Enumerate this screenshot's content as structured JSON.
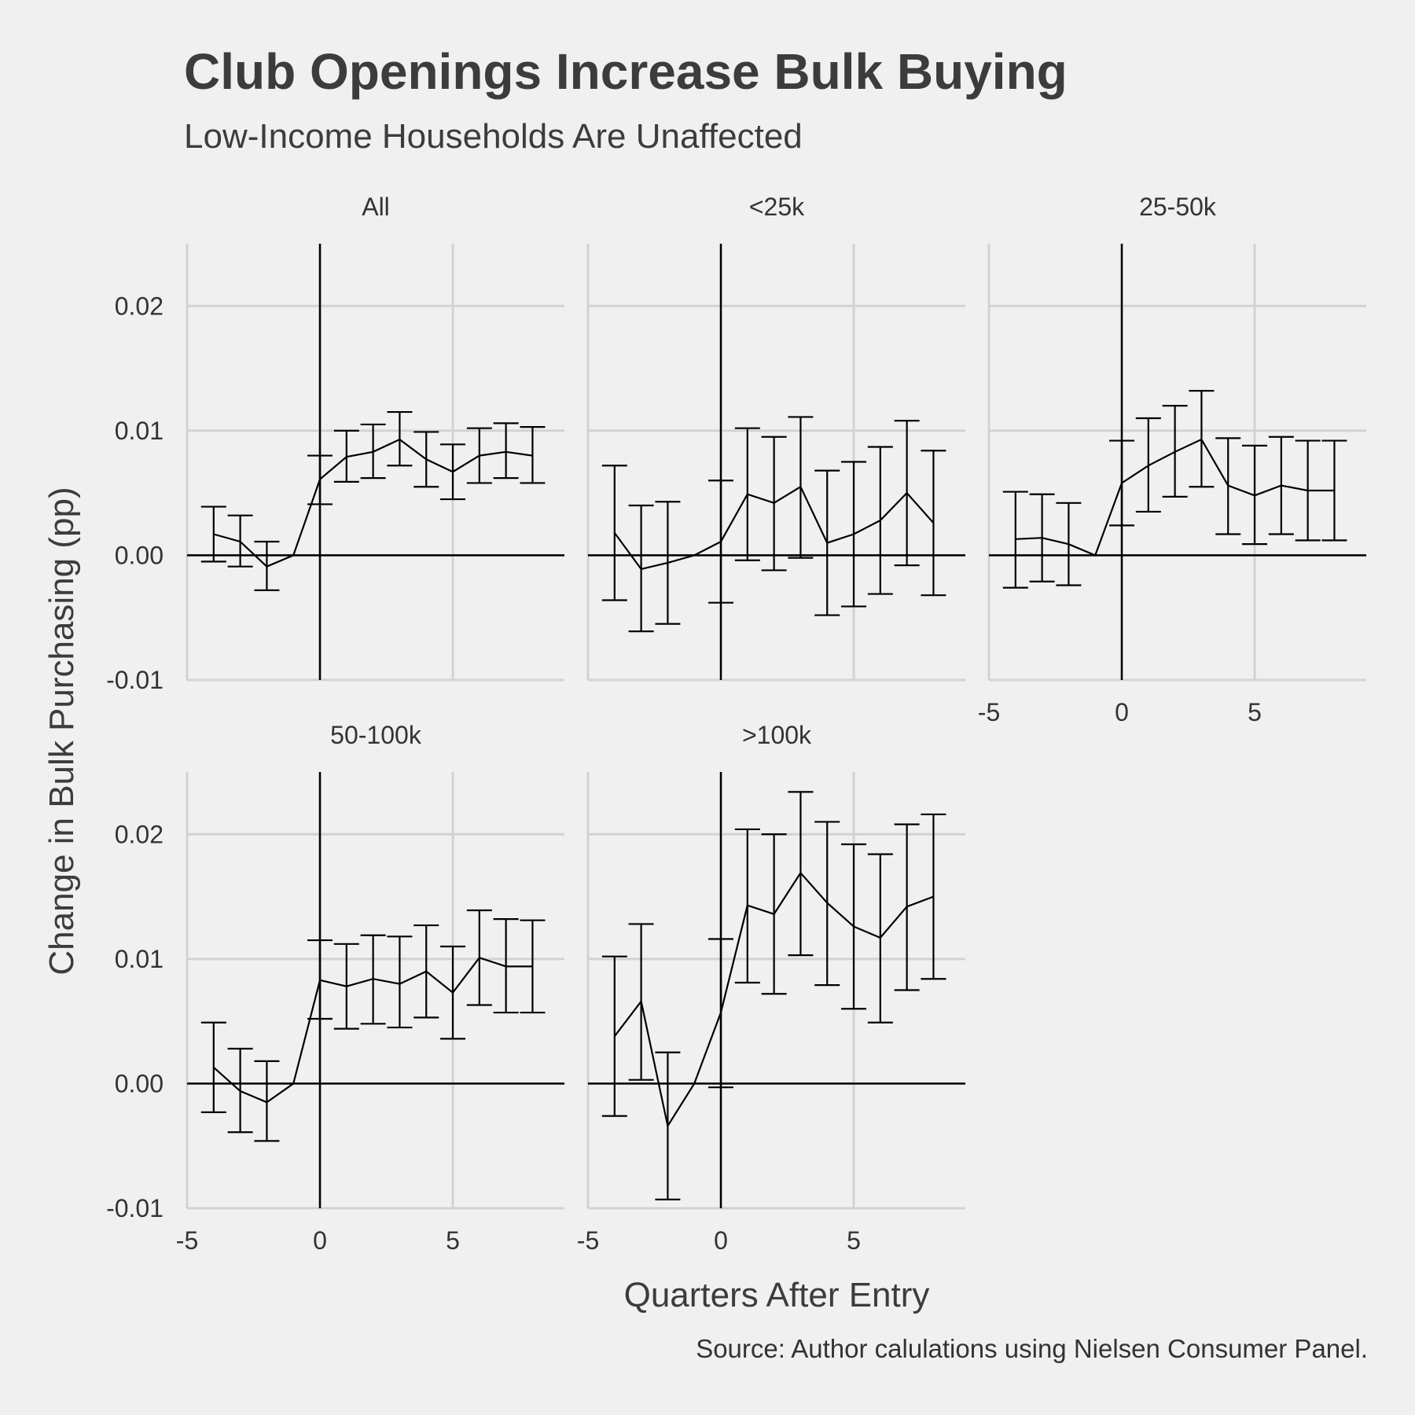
{
  "chart_data": {
    "type": "line",
    "title": "Club Openings Increase Bulk Buying",
    "subtitle": "Low-Income Households Are Unaffected",
    "xlabel": "Quarters After Entry",
    "ylabel": "Change in Bulk Purchasing (pp)",
    "caption": "Source: Author calulations using Nielsen Consumer Panel.",
    "xlim": [
      -5,
      9.2
    ],
    "ylim": [
      -0.01,
      0.025
    ],
    "x_ticks": [
      -5,
      0,
      5
    ],
    "y_ticks": [
      -0.01,
      0.0,
      0.01,
      0.02
    ],
    "x_tick_labels": [
      "-5",
      "0",
      "5"
    ],
    "y_tick_labels": [
      "-0.01",
      "0.00",
      "0.01",
      "0.02"
    ],
    "reference_lines": {
      "x": 0,
      "y": 0
    },
    "grid": true,
    "panels": [
      {
        "label": "All",
        "x": [
          -4,
          -3,
          -2,
          -1,
          0,
          1,
          2,
          3,
          4,
          5,
          6,
          7,
          8
        ],
        "y": [
          0.0017,
          0.0011,
          -0.0009,
          0.0,
          0.0061,
          0.0079,
          0.0083,
          0.0093,
          0.0077,
          0.0067,
          0.008,
          0.0083,
          0.008
        ],
        "lower": [
          -0.0005,
          -0.0009,
          -0.0028,
          null,
          0.0041,
          0.0059,
          0.0062,
          0.0072,
          0.0055,
          0.0045,
          0.0058,
          0.0062,
          0.0058
        ],
        "upper": [
          0.0039,
          0.0032,
          0.0011,
          null,
          0.008,
          0.01,
          0.0105,
          0.0115,
          0.0099,
          0.0089,
          0.0102,
          0.0106,
          0.0103
        ]
      },
      {
        "label": "<25k",
        "x": [
          -4,
          -3,
          -2,
          -1,
          0,
          1,
          2,
          3,
          4,
          5,
          6,
          7,
          8
        ],
        "y": [
          0.0018,
          -0.0011,
          -0.0006,
          0.0,
          0.0011,
          0.0049,
          0.0042,
          0.0055,
          0.001,
          0.0017,
          0.0028,
          0.005,
          0.0026
        ],
        "lower": [
          -0.0036,
          -0.0061,
          -0.0055,
          null,
          -0.0038,
          -0.0004,
          -0.0012,
          -0.0002,
          -0.0048,
          -0.0041,
          -0.0031,
          -0.0008,
          -0.0032
        ],
        "upper": [
          0.0072,
          0.004,
          0.0043,
          null,
          0.006,
          0.0102,
          0.0095,
          0.0111,
          0.0068,
          0.0075,
          0.0087,
          0.0108,
          0.0084
        ]
      },
      {
        "label": "25-50k",
        "x": [
          -4,
          -3,
          -2,
          -1,
          0,
          1,
          2,
          3,
          4,
          5,
          6,
          7,
          8
        ],
        "y": [
          0.0013,
          0.0014,
          0.0009,
          0.0,
          0.0058,
          0.0072,
          0.0083,
          0.0093,
          0.0056,
          0.0048,
          0.0056,
          0.0052,
          0.0052
        ],
        "lower": [
          -0.0026,
          -0.0021,
          -0.0024,
          null,
          0.0024,
          0.0035,
          0.0047,
          0.0055,
          0.0017,
          0.0009,
          0.0017,
          0.0012,
          0.0012
        ],
        "upper": [
          0.0051,
          0.0049,
          0.0042,
          null,
          0.0092,
          0.011,
          0.012,
          0.0132,
          0.0094,
          0.0088,
          0.0095,
          0.0092,
          0.0092
        ]
      },
      {
        "label": "50-100k",
        "x": [
          -4,
          -3,
          -2,
          -1,
          0,
          1,
          2,
          3,
          4,
          5,
          6,
          7,
          8
        ],
        "y": [
          0.0013,
          -0.0006,
          -0.0015,
          0.0,
          0.0083,
          0.0078,
          0.0084,
          0.008,
          0.009,
          0.0073,
          0.0101,
          0.0094,
          0.0094
        ],
        "lower": [
          -0.0023,
          -0.0039,
          -0.0046,
          null,
          0.0052,
          0.0044,
          0.0048,
          0.0045,
          0.0053,
          0.0036,
          0.0063,
          0.0057,
          0.0057
        ],
        "upper": [
          0.0049,
          0.0028,
          0.0018,
          null,
          0.0115,
          0.0112,
          0.0119,
          0.0118,
          0.0127,
          0.011,
          0.0139,
          0.0132,
          0.0131
        ]
      },
      {
        "label": ">100k",
        "x": [
          -4,
          -3,
          -2,
          -1,
          0,
          1,
          2,
          3,
          4,
          5,
          6,
          7,
          8
        ],
        "y": [
          0.0038,
          0.0066,
          -0.0034,
          0.0,
          0.0057,
          0.0143,
          0.0136,
          0.0169,
          0.0145,
          0.0126,
          0.0117,
          0.0142,
          0.015
        ],
        "lower": [
          -0.0026,
          0.0003,
          -0.0093,
          null,
          -0.0003,
          0.0081,
          0.0072,
          0.0103,
          0.0079,
          0.006,
          0.0049,
          0.0075,
          0.0084
        ],
        "upper": [
          0.0102,
          0.0128,
          0.0025,
          null,
          0.0116,
          0.0204,
          0.02,
          0.0234,
          0.021,
          0.0192,
          0.0184,
          0.0208,
          0.0216
        ]
      }
    ]
  }
}
